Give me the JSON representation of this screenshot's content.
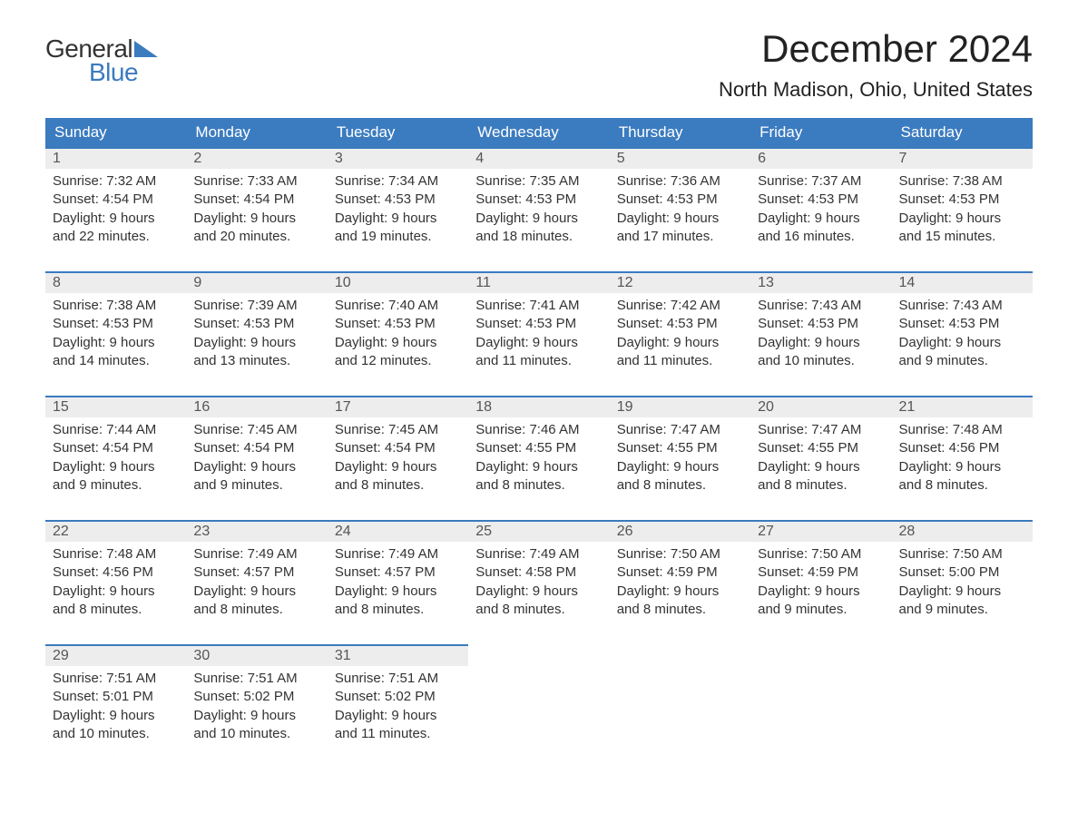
{
  "logo": {
    "word1": "General",
    "word2": "Blue",
    "text_color_word1": "#333333",
    "text_color_word2": "#3b7bbf",
    "triangle_color": "#3b7bbf",
    "fontsize": 28
  },
  "header": {
    "month_title": "December 2024",
    "location": "North Madison, Ohio, United States",
    "title_fontsize": 42,
    "location_fontsize": 22,
    "text_color": "#222222"
  },
  "calendar": {
    "type": "table",
    "day_header_bg": "#3b7bbf",
    "day_header_text_color": "#ffffff",
    "daynum_bar_bg": "#ededed",
    "daynum_bar_border_top": "#3b7bbf",
    "cell_text_color": "#333333",
    "cell_fontsize": 15,
    "header_fontsize": 17,
    "days_of_week": [
      "Sunday",
      "Monday",
      "Tuesday",
      "Wednesday",
      "Thursday",
      "Friday",
      "Saturday"
    ],
    "weeks": [
      [
        {
          "num": "1",
          "sunrise": "Sunrise: 7:32 AM",
          "sunset": "Sunset: 4:54 PM",
          "dl1": "Daylight: 9 hours",
          "dl2": "and 22 minutes."
        },
        {
          "num": "2",
          "sunrise": "Sunrise: 7:33 AM",
          "sunset": "Sunset: 4:54 PM",
          "dl1": "Daylight: 9 hours",
          "dl2": "and 20 minutes."
        },
        {
          "num": "3",
          "sunrise": "Sunrise: 7:34 AM",
          "sunset": "Sunset: 4:53 PM",
          "dl1": "Daylight: 9 hours",
          "dl2": "and 19 minutes."
        },
        {
          "num": "4",
          "sunrise": "Sunrise: 7:35 AM",
          "sunset": "Sunset: 4:53 PM",
          "dl1": "Daylight: 9 hours",
          "dl2": "and 18 minutes."
        },
        {
          "num": "5",
          "sunrise": "Sunrise: 7:36 AM",
          "sunset": "Sunset: 4:53 PM",
          "dl1": "Daylight: 9 hours",
          "dl2": "and 17 minutes."
        },
        {
          "num": "6",
          "sunrise": "Sunrise: 7:37 AM",
          "sunset": "Sunset: 4:53 PM",
          "dl1": "Daylight: 9 hours",
          "dl2": "and 16 minutes."
        },
        {
          "num": "7",
          "sunrise": "Sunrise: 7:38 AM",
          "sunset": "Sunset: 4:53 PM",
          "dl1": "Daylight: 9 hours",
          "dl2": "and 15 minutes."
        }
      ],
      [
        {
          "num": "8",
          "sunrise": "Sunrise: 7:38 AM",
          "sunset": "Sunset: 4:53 PM",
          "dl1": "Daylight: 9 hours",
          "dl2": "and 14 minutes."
        },
        {
          "num": "9",
          "sunrise": "Sunrise: 7:39 AM",
          "sunset": "Sunset: 4:53 PM",
          "dl1": "Daylight: 9 hours",
          "dl2": "and 13 minutes."
        },
        {
          "num": "10",
          "sunrise": "Sunrise: 7:40 AM",
          "sunset": "Sunset: 4:53 PM",
          "dl1": "Daylight: 9 hours",
          "dl2": "and 12 minutes."
        },
        {
          "num": "11",
          "sunrise": "Sunrise: 7:41 AM",
          "sunset": "Sunset: 4:53 PM",
          "dl1": "Daylight: 9 hours",
          "dl2": "and 11 minutes."
        },
        {
          "num": "12",
          "sunrise": "Sunrise: 7:42 AM",
          "sunset": "Sunset: 4:53 PM",
          "dl1": "Daylight: 9 hours",
          "dl2": "and 11 minutes."
        },
        {
          "num": "13",
          "sunrise": "Sunrise: 7:43 AM",
          "sunset": "Sunset: 4:53 PM",
          "dl1": "Daylight: 9 hours",
          "dl2": "and 10 minutes."
        },
        {
          "num": "14",
          "sunrise": "Sunrise: 7:43 AM",
          "sunset": "Sunset: 4:53 PM",
          "dl1": "Daylight: 9 hours",
          "dl2": "and 9 minutes."
        }
      ],
      [
        {
          "num": "15",
          "sunrise": "Sunrise: 7:44 AM",
          "sunset": "Sunset: 4:54 PM",
          "dl1": "Daylight: 9 hours",
          "dl2": "and 9 minutes."
        },
        {
          "num": "16",
          "sunrise": "Sunrise: 7:45 AM",
          "sunset": "Sunset: 4:54 PM",
          "dl1": "Daylight: 9 hours",
          "dl2": "and 9 minutes."
        },
        {
          "num": "17",
          "sunrise": "Sunrise: 7:45 AM",
          "sunset": "Sunset: 4:54 PM",
          "dl1": "Daylight: 9 hours",
          "dl2": "and 8 minutes."
        },
        {
          "num": "18",
          "sunrise": "Sunrise: 7:46 AM",
          "sunset": "Sunset: 4:55 PM",
          "dl1": "Daylight: 9 hours",
          "dl2": "and 8 minutes."
        },
        {
          "num": "19",
          "sunrise": "Sunrise: 7:47 AM",
          "sunset": "Sunset: 4:55 PM",
          "dl1": "Daylight: 9 hours",
          "dl2": "and 8 minutes."
        },
        {
          "num": "20",
          "sunrise": "Sunrise: 7:47 AM",
          "sunset": "Sunset: 4:55 PM",
          "dl1": "Daylight: 9 hours",
          "dl2": "and 8 minutes."
        },
        {
          "num": "21",
          "sunrise": "Sunrise: 7:48 AM",
          "sunset": "Sunset: 4:56 PM",
          "dl1": "Daylight: 9 hours",
          "dl2": "and 8 minutes."
        }
      ],
      [
        {
          "num": "22",
          "sunrise": "Sunrise: 7:48 AM",
          "sunset": "Sunset: 4:56 PM",
          "dl1": "Daylight: 9 hours",
          "dl2": "and 8 minutes."
        },
        {
          "num": "23",
          "sunrise": "Sunrise: 7:49 AM",
          "sunset": "Sunset: 4:57 PM",
          "dl1": "Daylight: 9 hours",
          "dl2": "and 8 minutes."
        },
        {
          "num": "24",
          "sunrise": "Sunrise: 7:49 AM",
          "sunset": "Sunset: 4:57 PM",
          "dl1": "Daylight: 9 hours",
          "dl2": "and 8 minutes."
        },
        {
          "num": "25",
          "sunrise": "Sunrise: 7:49 AM",
          "sunset": "Sunset: 4:58 PM",
          "dl1": "Daylight: 9 hours",
          "dl2": "and 8 minutes."
        },
        {
          "num": "26",
          "sunrise": "Sunrise: 7:50 AM",
          "sunset": "Sunset: 4:59 PM",
          "dl1": "Daylight: 9 hours",
          "dl2": "and 8 minutes."
        },
        {
          "num": "27",
          "sunrise": "Sunrise: 7:50 AM",
          "sunset": "Sunset: 4:59 PM",
          "dl1": "Daylight: 9 hours",
          "dl2": "and 9 minutes."
        },
        {
          "num": "28",
          "sunrise": "Sunrise: 7:50 AM",
          "sunset": "Sunset: 5:00 PM",
          "dl1": "Daylight: 9 hours",
          "dl2": "and 9 minutes."
        }
      ],
      [
        {
          "num": "29",
          "sunrise": "Sunrise: 7:51 AM",
          "sunset": "Sunset: 5:01 PM",
          "dl1": "Daylight: 9 hours",
          "dl2": "and 10 minutes."
        },
        {
          "num": "30",
          "sunrise": "Sunrise: 7:51 AM",
          "sunset": "Sunset: 5:02 PM",
          "dl1": "Daylight: 9 hours",
          "dl2": "and 10 minutes."
        },
        {
          "num": "31",
          "sunrise": "Sunrise: 7:51 AM",
          "sunset": "Sunset: 5:02 PM",
          "dl1": "Daylight: 9 hours",
          "dl2": "and 11 minutes."
        },
        {
          "empty": true
        },
        {
          "empty": true
        },
        {
          "empty": true
        },
        {
          "empty": true
        }
      ]
    ]
  }
}
